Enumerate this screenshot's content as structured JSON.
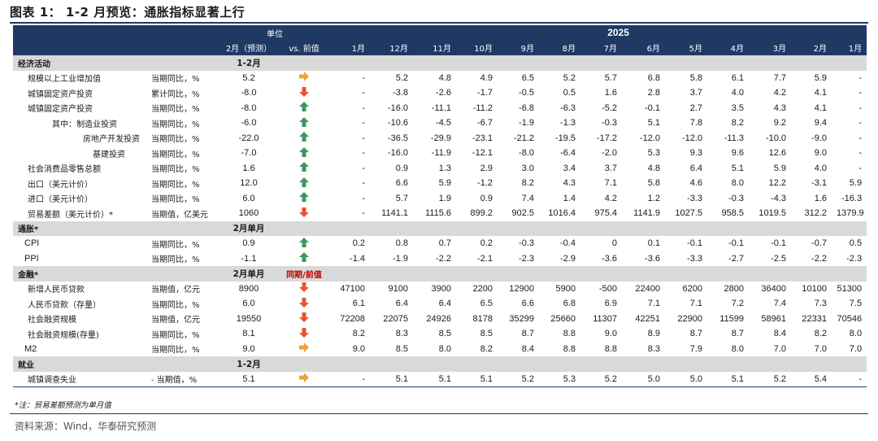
{
  "title": "图表 1：   1-2 月预览：通胀指标显著上行",
  "header": {
    "unit": "单位",
    "year": "2025",
    "forecast": "2月（预测）",
    "vs_prev": "vs. 前值",
    "months": [
      "1月",
      "12月",
      "11月",
      "10月",
      "9月",
      "8月",
      "7月",
      "6月",
      "5月",
      "4月",
      "3月",
      "2月",
      "1月"
    ]
  },
  "colors": {
    "up_green": "#3a9a5c",
    "down_red": "#e8552f",
    "flat_orange": "#f2a13a",
    "header_blue": "#1f3864"
  },
  "sections": [
    {
      "name": "经济活动",
      "period": "1-2月",
      "period2": "",
      "rows": [
        {
          "name": "规模以上工业增加值",
          "indent": "i1",
          "unit": "当期同比，%",
          "forecast": "5.2",
          "arrow": "flat",
          "values": [
            "-",
            "5.2",
            "4.8",
            "4.9",
            "6.5",
            "5.2",
            "5.7",
            "6.8",
            "5.8",
            "6.1",
            "7.7",
            "5.9",
            "-"
          ]
        },
        {
          "name": "城镇固定资产投资",
          "indent": "i1",
          "unit": "累计同比，%",
          "forecast": "-8.0",
          "arrow": "down",
          "values": [
            "-",
            "-3.8",
            "-2.6",
            "-1.7",
            "-0.5",
            "0.5",
            "1.6",
            "2.8",
            "3.7",
            "4.0",
            "4.2",
            "4.1",
            "-"
          ]
        },
        {
          "name": "城镇固定资产投资",
          "indent": "i1",
          "unit": "当期同比，%",
          "forecast": "-8.0",
          "arrow": "up",
          "values": [
            "-",
            "-16.0",
            "-11.1",
            "-11.2",
            "-6.8",
            "-6.3",
            "-5.2",
            "-0.1",
            "2.7",
            "3.5",
            "4.3",
            "4.1",
            "-"
          ]
        },
        {
          "name": "其中：制造业投资",
          "indent": "i3",
          "unit": "当期同比，%",
          "forecast": "-6.0",
          "arrow": "up",
          "values": [
            "-",
            "-10.6",
            "-4.5",
            "-6.7",
            "-1.9",
            "-1.3",
            "-0.3",
            "5.1",
            "7.8",
            "8.2",
            "9.2",
            "9.4",
            "-"
          ]
        },
        {
          "name": "房地产开发投资",
          "indent": "i4",
          "unit": "当期同比，%",
          "forecast": "-22.0",
          "arrow": "up",
          "values": [
            "-",
            "-36.5",
            "-29.9",
            "-23.1",
            "-21.2",
            "-19.5",
            "-17.2",
            "-12.0",
            "-12.0",
            "-11.3",
            "-10.0",
            "-9.0",
            "-"
          ]
        },
        {
          "name": "基建投资",
          "indent": "i5",
          "unit": "当期同比，%",
          "forecast": "-7.0",
          "arrow": "up",
          "values": [
            "-",
            "-16.0",
            "-11.9",
            "-12.1",
            "-8.0",
            "-6.4",
            "-2.0",
            "5.3",
            "9.3",
            "9.6",
            "12.6",
            "9.0",
            "-"
          ]
        },
        {
          "name": "社会消费品零售总额",
          "indent": "i1",
          "unit": "当期同比，%",
          "forecast": "1.6",
          "arrow": "up",
          "values": [
            "-",
            "0.9",
            "1.3",
            "2.9",
            "3.0",
            "3.4",
            "3.7",
            "4.8",
            "6.4",
            "5.1",
            "5.9",
            "4.0",
            "-"
          ]
        },
        {
          "name": "出口（美元计价）",
          "indent": "i1",
          "unit": "当期同比，%",
          "forecast": "12.0",
          "arrow": "up",
          "values": [
            "-",
            "6.6",
            "5.9",
            "-1.2",
            "8.2",
            "4.3",
            "7.1",
            "5.8",
            "4.6",
            "8.0",
            "12.2",
            "-3.1",
            "5.9"
          ]
        },
        {
          "name": "进口（美元计价）",
          "indent": "i1",
          "unit": "当期同比，%",
          "forecast": "6.0",
          "arrow": "up",
          "values": [
            "-",
            "5.7",
            "1.9",
            "0.9",
            "7.4",
            "1.4",
            "4.2",
            "1.2",
            "-3.3",
            "-0.3",
            "-4.3",
            "1.6",
            "-16.3"
          ]
        },
        {
          "name": "贸易差额（美元计价）*",
          "indent": "i1",
          "unit": "当期值，亿美元",
          "forecast": "1060",
          "arrow": "down",
          "values": [
            "-",
            "1141.1",
            "1115.6",
            "899.2",
            "902.5",
            "1016.4",
            "975.4",
            "1141.9",
            "1027.5",
            "958.5",
            "1019.5",
            "312.2",
            "1379.9"
          ]
        }
      ]
    },
    {
      "name": "通胀*",
      "period": "2月单月",
      "period2": "",
      "rows": [
        {
          "name": "CPI",
          "indent": "cpi",
          "unit": "当期同比，%",
          "forecast": "0.9",
          "arrow": "up",
          "values": [
            "0.2",
            "0.8",
            "0.7",
            "0.2",
            "-0.3",
            "-0.4",
            "0",
            "0.1",
            "-0.1",
            "-0.1",
            "-0.1",
            "-0.7",
            "0.5"
          ]
        },
        {
          "name": "PPI",
          "indent": "cpi",
          "unit": "当期同比，%",
          "forecast": "-1.1",
          "arrow": "up",
          "values": [
            "-1.4",
            "-1.9",
            "-2.2",
            "-2.1",
            "-2.3",
            "-2.9",
            "-3.6",
            "-3.6",
            "-3.3",
            "-2.7",
            "-2.5",
            "-2.2",
            "-2.3"
          ]
        }
      ]
    },
    {
      "name": "金融*",
      "period": "2月单月",
      "period2": "同期/前值",
      "rows": [
        {
          "name": "新增人民币贷款",
          "indent": "i1",
          "unit": "当期值，亿元",
          "forecast": "8900",
          "arrow": "down",
          "values": [
            "47100",
            "9100",
            "3900",
            "2200",
            "12900",
            "5900",
            "-500",
            "22400",
            "6200",
            "2800",
            "36400",
            "10100",
            "51300"
          ]
        },
        {
          "name": "人民币贷款（存量）",
          "indent": "i1",
          "unit": "当期同比，%",
          "forecast": "6.0",
          "arrow": "down",
          "values": [
            "6.1",
            "6.4",
            "6.4",
            "6.5",
            "6.6",
            "6.8",
            "6.9",
            "7.1",
            "7.1",
            "7.2",
            "7.4",
            "7.3",
            "7.5"
          ]
        },
        {
          "name": "社会融资规模",
          "indent": "i1",
          "unit": "当期值，亿元",
          "forecast": "19550",
          "arrow": "down",
          "values": [
            "72208",
            "22075",
            "24926",
            "8178",
            "35299",
            "25660",
            "11307",
            "42251",
            "22900",
            "11599",
            "58961",
            "22331",
            "70546"
          ]
        },
        {
          "name": "社会融资规模(存量)",
          "indent": "i1",
          "unit": "当期同比，%",
          "forecast": "8.1",
          "arrow": "down",
          "values": [
            "8.2",
            "8.3",
            "8.5",
            "8.5",
            "8.7",
            "8.8",
            "9.0",
            "8.9",
            "8.7",
            "8.7",
            "8.4",
            "8.2",
            "8.0"
          ]
        },
        {
          "name": "M2",
          "indent": "cpi",
          "unit": "当期同比，%",
          "forecast": "9.0",
          "arrow": "flat",
          "values": [
            "9.0",
            "8.5",
            "8.0",
            "8.2",
            "8.4",
            "8.8",
            "8.8",
            "8.3",
            "7.9",
            "8.0",
            "7.0",
            "7.0",
            "7.0"
          ]
        }
      ]
    },
    {
      "name": "就业",
      "period": "1-2月",
      "period2": "",
      "rows": [
        {
          "name": "城镇调查失业",
          "indent": "i1",
          "unit": "当期值，%",
          "forecast": "5.1",
          "arrow": "flat",
          "values": [
            "-",
            "5.1",
            "5.1",
            "5.1",
            "5.2",
            "5.3",
            "5.2",
            "5.0",
            "5.0",
            "5.1",
            "5.2",
            "5.4",
            "-"
          ]
        }
      ]
    }
  ],
  "note": "*注：贸易差额预测为单月值",
  "source": "资料来源：Wind，华泰研究预测"
}
